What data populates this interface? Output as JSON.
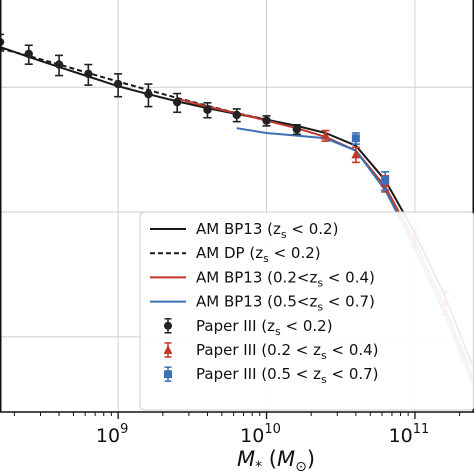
{
  "chart_data": {
    "type": "line",
    "x_scale": "log",
    "y_scale": "log",
    "xlim": [
      160000000,
      250000000000
    ],
    "ylim": [
      2.5e-05,
      0.05
    ],
    "grid": true,
    "xlabel": "M_* (M_⊙)",
    "ylabel": "",
    "x_ticks": [
      {
        "value": 1000000000,
        "base": "10",
        "exp": "9"
      },
      {
        "value": 10000000000,
        "base": "10",
        "exp": "10"
      },
      {
        "value": 100000000000,
        "base": "10",
        "exp": "11"
      }
    ],
    "legend_position": "lower-right",
    "series": [
      {
        "name": "AM BP13 (z_s < 0.2)",
        "label_main": "AM BP13 (",
        "label_sub": "z",
        "label_subscript": "s",
        "label_rest": " < 0.2)",
        "kind": "line",
        "style": "solid",
        "color": "#1a1a1a",
        "x": [
          160000000,
          250000000,
          400000000,
          630000000,
          1000000000,
          1600000000,
          2500000000,
          4000000000,
          6300000000,
          10000000000,
          16000000000,
          25000000000,
          40000000000,
          63000000000,
          100000000000,
          160000000000,
          250000000000
        ],
        "y": [
          0.021,
          0.0175,
          0.0145,
          0.0122,
          0.0102,
          0.0088,
          0.0077,
          0.0068,
          0.0061,
          0.0055,
          0.0049,
          0.0043,
          0.0034,
          0.0018,
          0.00068,
          0.00021,
          5.5e-05
        ]
      },
      {
        "name": "AM DP (z_s < 0.2)",
        "label_main": "AM DP (",
        "label_sub": "z",
        "label_subscript": "s",
        "label_rest": " < 0.2)",
        "kind": "line",
        "style": "dashed",
        "color": "#1a1a1a",
        "x": [
          160000000,
          250000000,
          400000000,
          630000000,
          1000000000,
          1600000000,
          2500000000,
          4000000000,
          6300000000,
          10000000000
        ],
        "y": [
          0.0205,
          0.0178,
          0.0152,
          0.013,
          0.0111,
          0.0095,
          0.0082,
          0.0071,
          0.0062,
          0.0055
        ]
      },
      {
        "name": "AM BP13 (0.2<z_s < 0.4)",
        "label_main": "AM BP13 (0.2<",
        "label_sub": "z",
        "label_subscript": "s",
        "label_rest": " < 0.4)",
        "kind": "line",
        "style": "solid",
        "color": "#c0392b",
        "x": [
          2500000000,
          4000000000,
          6300000000,
          10000000000,
          16000000000,
          25000000000,
          40000000000,
          63000000000,
          100000000000,
          160000000000,
          250000000000
        ],
        "y": [
          0.0081,
          0.007,
          0.0062,
          0.0054,
          0.0047,
          0.004,
          0.0031,
          0.0016,
          0.00058,
          0.00017,
          4.5e-05
        ]
      },
      {
        "name": "AM BP13 (0.5<z_s < 0.7)",
        "label_main": "AM BP13 (0.5<",
        "label_sub": "z",
        "label_subscript": "s",
        "label_rest": " < 0.7)",
        "kind": "line",
        "style": "solid",
        "color": "#3a6fb5",
        "x": [
          6300000000,
          10000000000,
          16000000000,
          25000000000,
          40000000000,
          63000000000,
          100000000000,
          160000000000,
          250000000000
        ],
        "y": [
          0.0047,
          0.0043,
          0.0041,
          0.0039,
          0.0031,
          0.0015,
          0.00052,
          0.00015,
          4e-05
        ]
      },
      {
        "name": "Paper III (z_s < 0.2)",
        "label_main": "Paper III (",
        "label_sub": "z",
        "label_subscript": "s",
        "label_rest": " < 0.2)",
        "kind": "points",
        "marker": "circle",
        "color": "#222222",
        "x": [
          160000000,
          250000000,
          400000000,
          630000000,
          1000000000,
          1600000000,
          2500000000,
          4000000000,
          6300000000,
          10000000000,
          16000000000
        ],
        "y": [
          0.023,
          0.0185,
          0.0152,
          0.0128,
          0.0106,
          0.0088,
          0.0076,
          0.0066,
          0.006,
          0.0054,
          0.0046
        ],
        "err": [
          0.0035,
          0.0032,
          0.0028,
          0.0024,
          0.0022,
          0.0018,
          0.0013,
          0.0009,
          0.0007,
          0.0005,
          0.0004
        ]
      },
      {
        "name": "Paper III (0.2 < z_s < 0.4)",
        "label_main": "Paper III (0.2 < ",
        "label_sub": "z",
        "label_subscript": "s",
        "label_rest": " < 0.4)",
        "kind": "points",
        "marker": "triangle",
        "color": "#c0392b",
        "x": [
          25000000000,
          40000000000,
          63000000000,
          100000000000,
          160000000000
        ],
        "y": [
          0.0041,
          0.0029,
          0.0017,
          0.00063,
          0.00019
        ],
        "err": [
          0.0004,
          0.0004,
          0.00025,
          0.0001,
          4e-05
        ]
      },
      {
        "name": "Paper III (0.5 < z_s < 0.7)",
        "label_main": "Paper III (0.5 < ",
        "label_sub": "z",
        "label_subscript": "s",
        "label_rest": " < 0.7)",
        "kind": "points",
        "marker": "square",
        "color": "#3a6fb5",
        "x": [
          40000000000,
          63000000000
        ],
        "y": [
          0.0039,
          0.0018
        ],
        "err": [
          0.0004,
          0.0003
        ]
      }
    ]
  }
}
